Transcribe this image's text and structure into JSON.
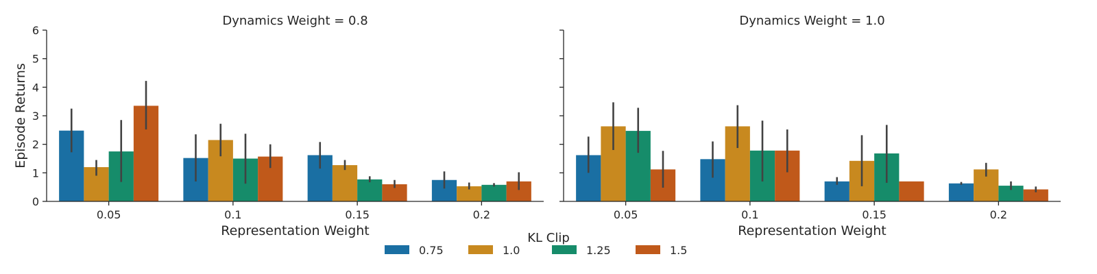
{
  "chart_data": [
    {
      "type": "bar",
      "title": "Dynamics Weight = 0.8",
      "xlabel": "Representation Weight",
      "ylabel": "Episode Returns",
      "categories": [
        "0.05",
        "0.1",
        "0.15",
        "0.2"
      ],
      "ylim": [
        0,
        6
      ],
      "yticks": [
        "0",
        "1",
        "2",
        "3",
        "4",
        "5",
        "6"
      ],
      "series": [
        {
          "name": "0.75",
          "values": [
            2.48,
            1.52,
            1.62,
            0.75
          ],
          "err_low": [
            1.72,
            0.7,
            1.15,
            0.45
          ],
          "err_high": [
            3.25,
            2.35,
            2.08,
            1.05
          ]
        },
        {
          "name": "1.0",
          "values": [
            1.2,
            2.15,
            1.27,
            0.53
          ],
          "err_low": [
            0.9,
            1.58,
            1.1,
            0.42
          ],
          "err_high": [
            1.45,
            2.72,
            1.45,
            0.66
          ]
        },
        {
          "name": "1.25",
          "values": [
            1.75,
            1.5,
            0.77,
            0.58
          ],
          "err_low": [
            0.68,
            0.62,
            0.67,
            0.52
          ],
          "err_high": [
            2.85,
            2.37,
            0.88,
            0.64
          ]
        },
        {
          "name": "1.5",
          "values": [
            3.35,
            1.57,
            0.6,
            0.7
          ],
          "err_low": [
            2.52,
            1.17,
            0.47,
            0.4
          ],
          "err_high": [
            4.22,
            2.0,
            0.75,
            1.02
          ]
        }
      ],
      "grid": false
    },
    {
      "type": "bar",
      "title": "Dynamics Weight = 1.0",
      "xlabel": "Representation Weight",
      "ylabel": "",
      "categories": [
        "0.05",
        "0.1",
        "0.15",
        "0.2"
      ],
      "ylim": [
        0,
        6
      ],
      "series": [
        {
          "name": "0.75",
          "values": [
            1.62,
            1.48,
            0.7,
            0.63
          ],
          "err_low": [
            1.0,
            0.83,
            0.58,
            0.58
          ],
          "err_high": [
            2.27,
            2.1,
            0.85,
            0.68
          ]
        },
        {
          "name": "1.0",
          "values": [
            2.63,
            2.63,
            1.42,
            1.12
          ],
          "err_low": [
            1.8,
            1.87,
            0.53,
            0.87
          ],
          "err_high": [
            3.47,
            3.37,
            2.32,
            1.35
          ]
        },
        {
          "name": "1.25",
          "values": [
            2.47,
            1.78,
            1.68,
            0.55
          ],
          "err_low": [
            1.7,
            0.7,
            0.65,
            0.4
          ],
          "err_high": [
            3.28,
            2.83,
            2.68,
            0.7
          ]
        },
        {
          "name": "1.5",
          "values": [
            1.12,
            1.78,
            0.7,
            0.42
          ],
          "err_low": [
            0.48,
            1.02,
            0.7,
            0.32
          ],
          "err_high": [
            1.77,
            2.52,
            0.7,
            0.52
          ]
        }
      ],
      "grid": false
    }
  ],
  "legend": {
    "title": "KL Clip",
    "placement": "bottom-center",
    "items": [
      {
        "label": "0.75",
        "color": "#0173b2"
      },
      {
        "label": "1.0",
        "color": "#de8f05"
      },
      {
        "label": "1.25",
        "color": "#029e73"
      },
      {
        "label": "1.5",
        "color": "#d55e00"
      }
    ]
  },
  "colors": {
    "series": [
      "#1a6fa3",
      "#c8891f",
      "#168c6a",
      "#c0591a"
    ],
    "error_bar": "#424242"
  }
}
